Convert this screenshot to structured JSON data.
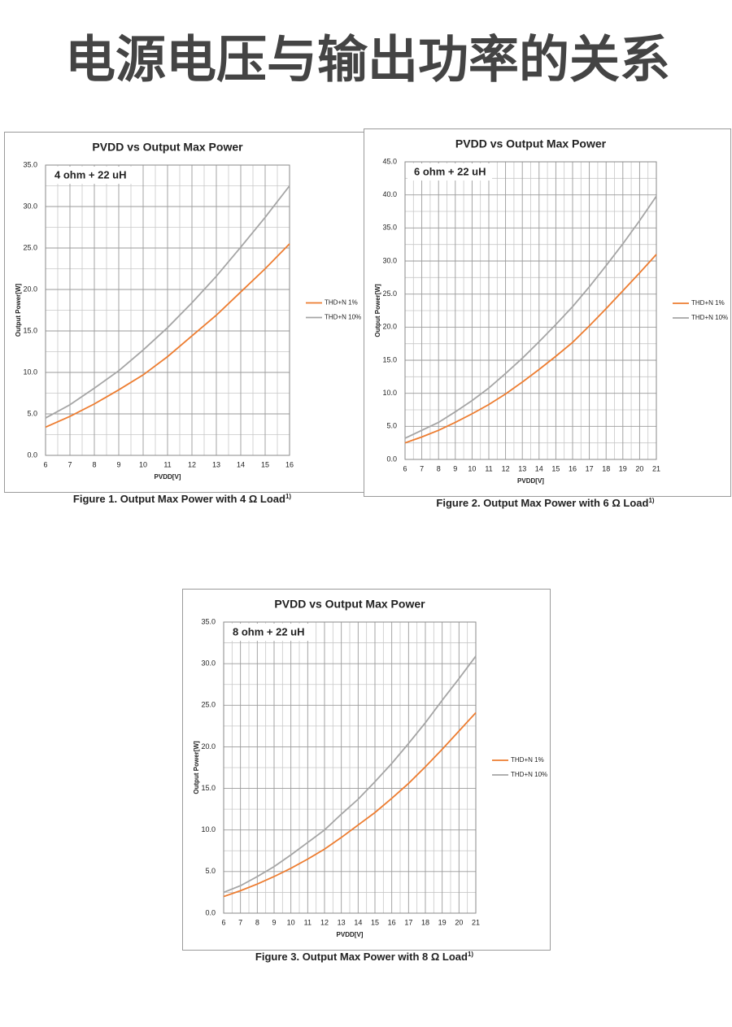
{
  "title": "电源电压与输出功率的关系",
  "chart_data": [
    {
      "type": "line",
      "title": "PVDD vs Output Max Power",
      "annotation": "4 ohm + 22 uH",
      "x_label": "PVDD[V]",
      "y_label": "Output Power[W]",
      "caption": "Figure 1. Output Max Power with 4 Ω Load",
      "caption_note": "1)",
      "x": [
        6,
        7,
        8,
        9,
        10,
        11,
        12,
        13,
        14,
        15,
        16
      ],
      "series": [
        {
          "name": "THD+N 1%",
          "color": "#ed7d31",
          "values": [
            3.4,
            4.7,
            6.2,
            7.9,
            9.7,
            11.9,
            14.4,
            16.9,
            19.7,
            22.5,
            25.5
          ]
        },
        {
          "name": "THD+N 10%",
          "color": "#a5a5a5",
          "values": [
            4.5,
            6.1,
            8.1,
            10.2,
            12.7,
            15.4,
            18.4,
            21.6,
            25.1,
            28.7,
            32.5
          ]
        }
      ],
      "xlim": [
        6,
        16
      ],
      "xticks": [
        6,
        7,
        8,
        9,
        10,
        11,
        12,
        13,
        14,
        15,
        16
      ],
      "ylim": [
        0,
        35
      ],
      "yticks": [
        {
          "value": 0,
          "label": "0.0"
        },
        {
          "value": 5,
          "label": "5.0"
        },
        {
          "value": 10,
          "label": "10.0"
        },
        {
          "value": 15,
          "label": "15.0"
        },
        {
          "value": 20,
          "label": "20.0"
        },
        {
          "value": 25,
          "label": "25.0"
        },
        {
          "value": 30,
          "label": "30.0"
        },
        {
          "value": 35,
          "label": "35.0"
        }
      ],
      "grid": true,
      "legend": "right"
    },
    {
      "type": "line",
      "title": "PVDD vs Output Max Power",
      "annotation": "6 ohm + 22 uH",
      "x_label": "PVDD[V]",
      "y_label": "Output Power[W]",
      "caption": "Figure 2. Output Max Power with 6 Ω Load",
      "caption_note": "1)",
      "x": [
        6,
        7,
        8,
        9,
        10,
        11,
        12,
        13,
        14,
        15,
        16,
        17,
        18,
        19,
        20,
        21
      ],
      "series": [
        {
          "name": "THD+N 1%",
          "color": "#ed7d31",
          "values": [
            2.5,
            3.4,
            4.4,
            5.6,
            6.9,
            8.3,
            9.9,
            11.7,
            13.6,
            15.6,
            17.7,
            20.2,
            22.8,
            25.5,
            28.2,
            31.0
          ]
        },
        {
          "name": "THD+N 10%",
          "color": "#a5a5a5",
          "values": [
            3.2,
            4.4,
            5.6,
            7.2,
            8.9,
            10.8,
            13.0,
            15.3,
            17.8,
            20.4,
            23.1,
            26.1,
            29.3,
            32.6,
            36.1,
            39.8
          ]
        }
      ],
      "xlim": [
        6,
        21
      ],
      "xticks": [
        6,
        7,
        8,
        9,
        10,
        11,
        12,
        13,
        14,
        15,
        16,
        17,
        18,
        19,
        20,
        21
      ],
      "ylim": [
        0,
        45
      ],
      "yticks": [
        {
          "value": 0,
          "label": "0.0"
        },
        {
          "value": 5,
          "label": "5.0"
        },
        {
          "value": 10,
          "label": "10.0"
        },
        {
          "value": 15,
          "label": "15.0"
        },
        {
          "value": 20,
          "label": "20.0"
        },
        {
          "value": 25,
          "label": "25.0"
        },
        {
          "value": 30,
          "label": "30.0"
        },
        {
          "value": 35,
          "label": "35.0"
        },
        {
          "value": 40,
          "label": "40.0"
        },
        {
          "value": 45,
          "label": "45.0"
        }
      ],
      "grid": true,
      "legend": "right"
    },
    {
      "type": "line",
      "title": "PVDD vs Output Max Power",
      "annotation": "8 ohm + 22 uH",
      "x_label": "PVDD[V]",
      "y_label": "Output Power[W]",
      "caption": "Figure 3. Output Max Power with 8 Ω Load",
      "caption_note": "1)",
      "x": [
        6,
        7,
        8,
        9,
        10,
        11,
        12,
        13,
        14,
        15,
        16,
        17,
        18,
        19,
        20,
        21
      ],
      "series": [
        {
          "name": "THD+N 1%",
          "color": "#ed7d31",
          "values": [
            2.0,
            2.7,
            3.5,
            4.4,
            5.4,
            6.5,
            7.7,
            9.1,
            10.6,
            12.1,
            13.8,
            15.6,
            17.6,
            19.7,
            21.9,
            24.1
          ]
        },
        {
          "name": "THD+N 10%",
          "color": "#a5a5a5",
          "values": [
            2.5,
            3.3,
            4.4,
            5.6,
            7.0,
            8.5,
            10.0,
            11.9,
            13.7,
            15.8,
            18.0,
            20.4,
            22.9,
            25.6,
            28.2,
            30.9
          ]
        }
      ],
      "xlim": [
        6,
        21
      ],
      "xticks": [
        6,
        7,
        8,
        9,
        10,
        11,
        12,
        13,
        14,
        15,
        16,
        17,
        18,
        19,
        20,
        21
      ],
      "ylim": [
        0,
        35
      ],
      "yticks": [
        {
          "value": 0,
          "label": "0.0"
        },
        {
          "value": 5,
          "label": "5.0"
        },
        {
          "value": 10,
          "label": "10.0"
        },
        {
          "value": 15,
          "label": "15.0"
        },
        {
          "value": 20,
          "label": "20.0"
        },
        {
          "value": 25,
          "label": "25.0"
        },
        {
          "value": 30,
          "label": "30.0"
        },
        {
          "value": 35,
          "label": "35.0"
        }
      ],
      "grid": true,
      "legend": "right"
    }
  ]
}
